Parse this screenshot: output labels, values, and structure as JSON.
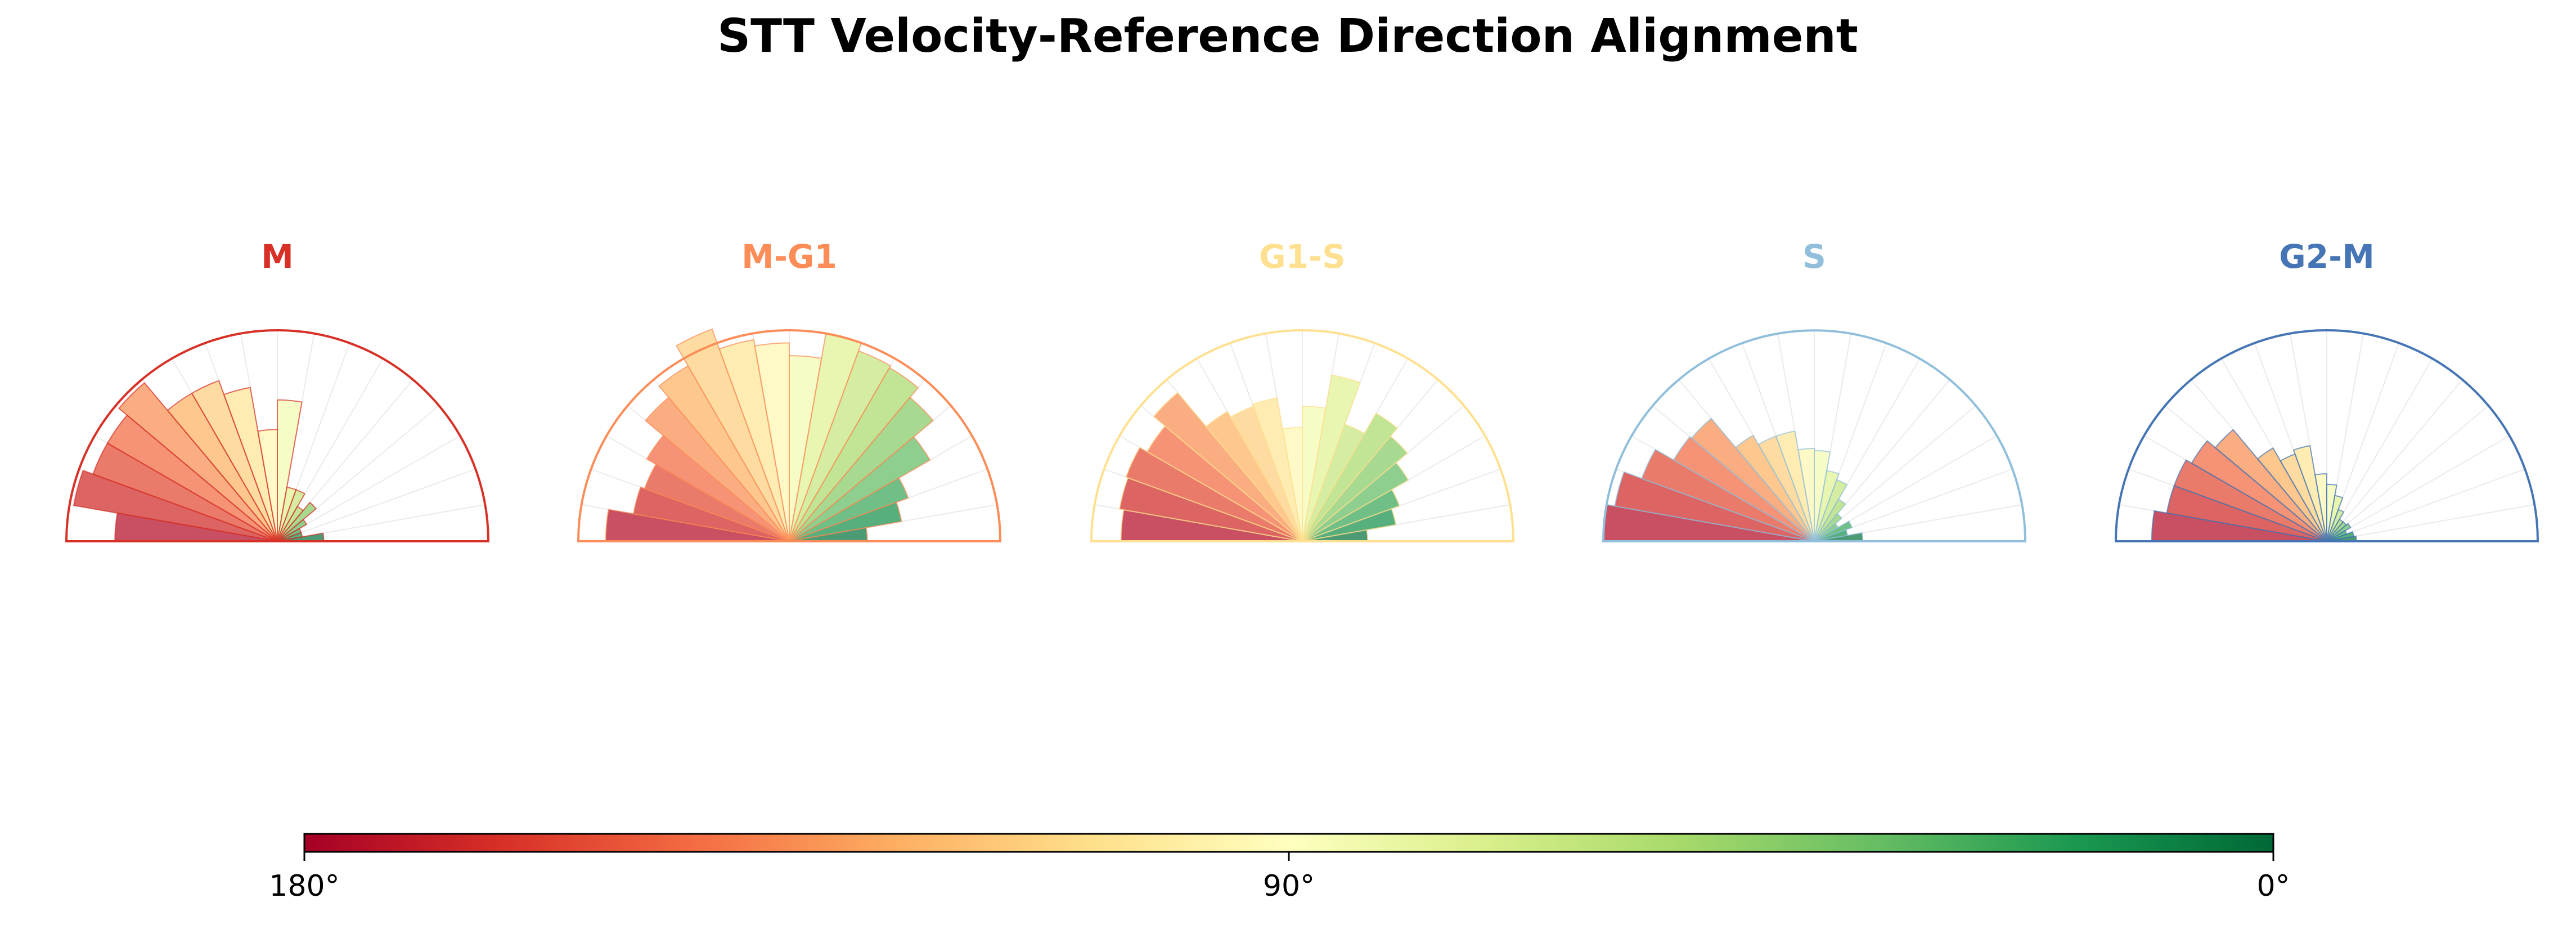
{
  "chart_data": {
    "type": "polar-bar",
    "title": "STT Velocity-Reference Direction Alignment",
    "angle_range_deg": [
      0,
      180
    ],
    "bin_width_deg": 10,
    "angle_direction": "180° at left, 0° at right",
    "bin_centers_deg": [
      175,
      165,
      155,
      145,
      135,
      125,
      115,
      105,
      95,
      85,
      75,
      65,
      55,
      45,
      35,
      25,
      15,
      5
    ],
    "rlim": [
      0,
      1
    ],
    "series": [
      {
        "name": "M",
        "color": "#d73027",
        "values": [
          0.77,
          0.98,
          0.93,
          0.93,
          0.98,
          0.81,
          0.81,
          0.74,
          0.53,
          0.67,
          0.26,
          0.26,
          0.19,
          0.24,
          0.16,
          0.12,
          0.12,
          0.22
        ]
      },
      {
        "name": "M-G1",
        "color": "#fc8d59",
        "values": [
          0.87,
          0.75,
          0.73,
          0.78,
          0.89,
          0.96,
          1.07,
          0.97,
          0.94,
          0.88,
          1.0,
          0.96,
          0.95,
          0.89,
          0.77,
          0.6,
          0.54,
          0.37
        ]
      },
      {
        "name": "G1-S",
        "color": "#fee090",
        "values": [
          0.86,
          0.88,
          0.89,
          0.85,
          0.92,
          0.71,
          0.68,
          0.69,
          0.54,
          0.64,
          0.8,
          0.59,
          0.7,
          0.65,
          0.58,
          0.49,
          0.45,
          0.31
        ]
      },
      {
        "name": "S",
        "color": "#91bfdb",
        "values": [
          1.0,
          0.96,
          0.87,
          0.77,
          0.76,
          0.58,
          0.53,
          0.53,
          0.44,
          0.43,
          0.34,
          0.31,
          0.23,
          0.17,
          0.13,
          0.19,
          0.16,
          0.23
        ]
      },
      {
        "name": "G2-M",
        "color": "#4575b4",
        "values": [
          0.83,
          0.77,
          0.77,
          0.74,
          0.69,
          0.51,
          0.44,
          0.46,
          0.32,
          0.27,
          0.22,
          0.16,
          0.12,
          0.12,
          0.13,
          0.1,
          0.13,
          0.14
        ]
      }
    ],
    "colorbar": {
      "label_left": "180°",
      "label_mid": "90°",
      "label_right": "0°",
      "cmap_stops": [
        "#a50026",
        "#d73027",
        "#f46d43",
        "#fdae61",
        "#fee08b",
        "#ffffbf",
        "#d9ef8b",
        "#a6d96a",
        "#66bd63",
        "#1a9850",
        "#006837"
      ]
    }
  }
}
